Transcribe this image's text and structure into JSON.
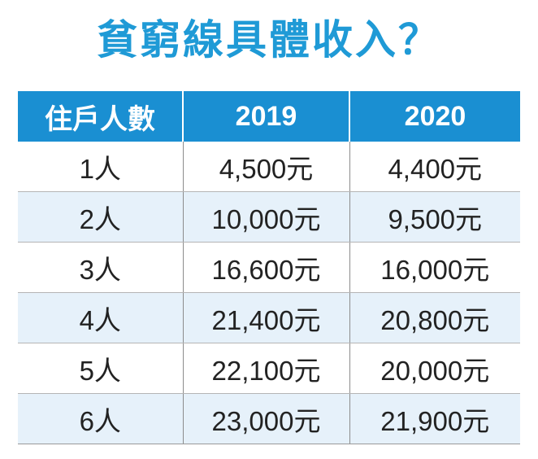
{
  "title": "貧窮線具體收入？",
  "table": {
    "headers": [
      "住戶人數",
      "2019",
      "2020"
    ],
    "rows": [
      [
        "1人",
        "4,500元",
        "4,400元"
      ],
      [
        "2人",
        "10,000元",
        "9,500元"
      ],
      [
        "3人",
        "16,600元",
        "16,000元"
      ],
      [
        "4人",
        "21,400元",
        "20,800元"
      ],
      [
        "5人",
        "22,100元",
        "20,000元"
      ],
      [
        "6人",
        "23,000元",
        "21,900元"
      ]
    ]
  },
  "colors": {
    "title": "#1f9ad6",
    "header_bg": "#1a8fd2",
    "row_stripe": "#e6f1fa"
  }
}
